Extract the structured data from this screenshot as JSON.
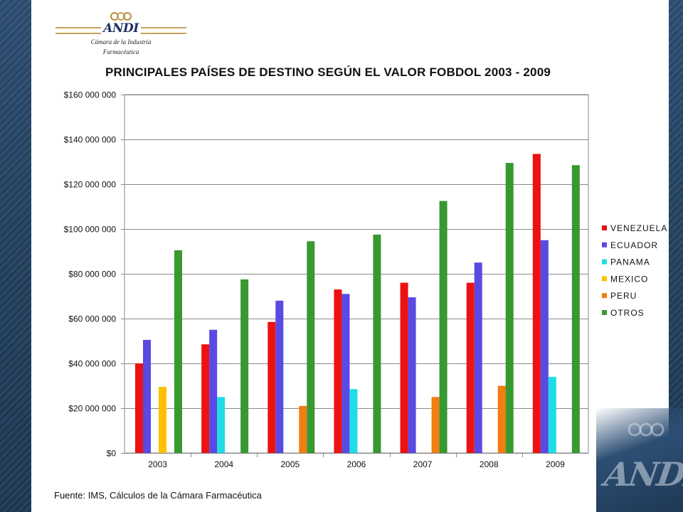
{
  "branding": {
    "logo_text": "ANDI",
    "subtitle_line1": "Cámara de la Industria",
    "subtitle_line2": "Farmacéutica",
    "corner_watermark": "ANDI"
  },
  "colors": {
    "background": "#ffffff",
    "frame_blue": "#2d4e74",
    "logo_gold": "#c5a25a",
    "logo_navy": "#1f2f66"
  },
  "chart_data": {
    "type": "bar",
    "title": "PRINCIPALES PAÍSES DE DESTINO SEGÚN EL VALOR FOBDOL 2003 - 2009",
    "xlabel": "",
    "ylabel": "",
    "categories": [
      "2003",
      "2004",
      "2005",
      "2006",
      "2007",
      "2008",
      "2009"
    ],
    "ylim": [
      0,
      160000000
    ],
    "yticks": [
      0,
      20000000,
      40000000,
      60000000,
      80000000,
      100000000,
      120000000,
      140000000,
      160000000
    ],
    "ytick_labels": [
      "$0",
      "$20 000 000",
      "$40 000 000",
      "$60 000 000",
      "$80 000 000",
      "$100 000 000",
      "$120 000 000",
      "$140 000 000",
      "$160 000 000"
    ],
    "grid": true,
    "legend_position": "right",
    "series": [
      {
        "name": "VENEZUELA",
        "color": "#ee1111",
        "values": [
          40000000,
          48500000,
          58500000,
          73000000,
          76000000,
          76000000,
          133500000
        ]
      },
      {
        "name": "ECUADOR",
        "color": "#5a49e2",
        "values": [
          50500000,
          55000000,
          68000000,
          71000000,
          69500000,
          85000000,
          95000000
        ]
      },
      {
        "name": "PANAMA",
        "color": "#1fdde8",
        "values": [
          null,
          25000000,
          null,
          28500000,
          null,
          null,
          34000000
        ]
      },
      {
        "name": "MEXICO",
        "color": "#ffc000",
        "values": [
          29500000,
          null,
          null,
          null,
          null,
          null,
          null
        ]
      },
      {
        "name": "PERU",
        "color": "#f07e11",
        "values": [
          null,
          null,
          21000000,
          null,
          25000000,
          30000000,
          null
        ]
      },
      {
        "name": "OTROS",
        "color": "#37992f",
        "values": [
          90500000,
          77500000,
          94500000,
          97500000,
          112500000,
          129500000,
          128500000
        ]
      }
    ],
    "source_note": "Fuente: IMS, Cálculos de la Cámara Farmacéutica"
  }
}
